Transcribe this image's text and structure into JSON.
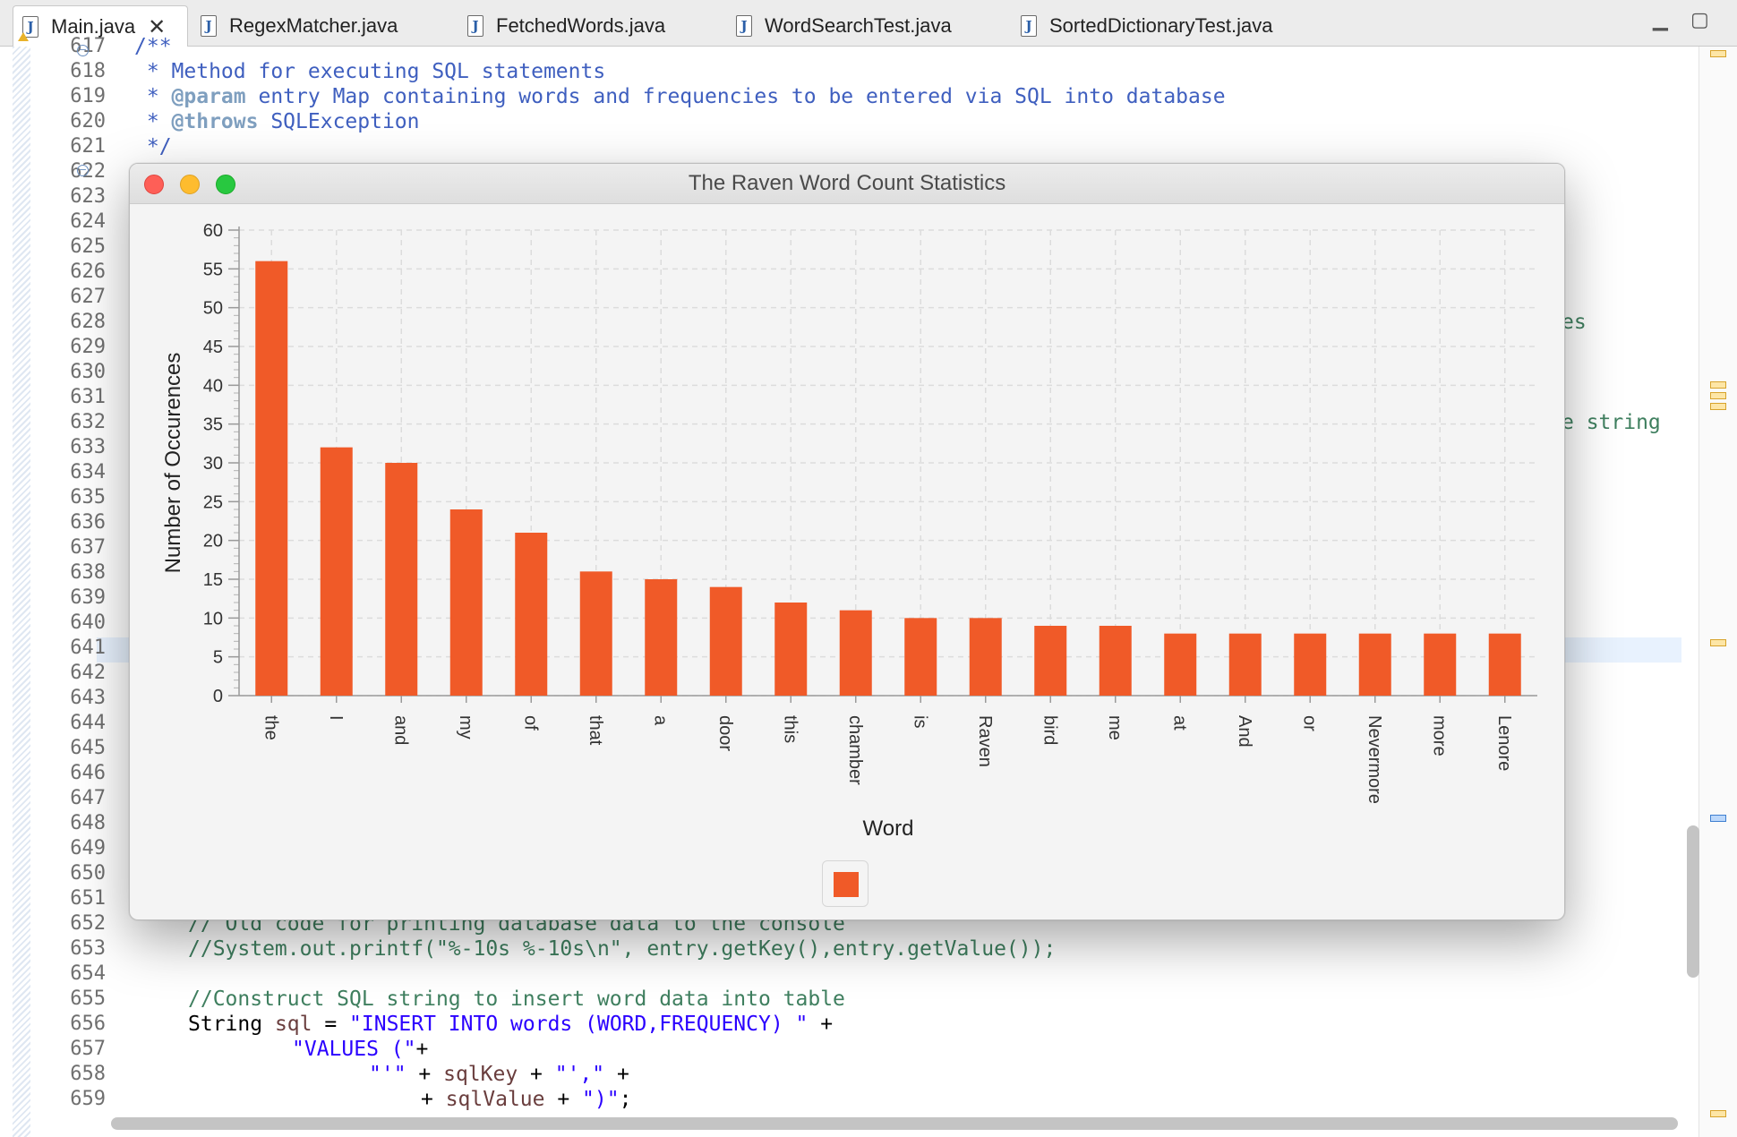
{
  "tabs": [
    {
      "label": "Main.java",
      "active": true,
      "warning": true,
      "closable": true
    },
    {
      "label": "RegexMatcher.java",
      "active": false
    },
    {
      "label": "FetchedWords.java",
      "active": false
    },
    {
      "label": "WordSearchTest.java",
      "active": false
    },
    {
      "label": "SortedDictionaryTest.java",
      "active": false
    }
  ],
  "editor": {
    "line_numbers": [
      "617",
      "618",
      "619",
      "620",
      "621",
      "622",
      "623",
      "624",
      "625",
      "626",
      "627",
      "628",
      "629",
      "630",
      "631",
      "632",
      "633",
      "634",
      "635",
      "636",
      "637",
      "638",
      "639",
      "640",
      "641",
      "642",
      "643",
      "644",
      "645",
      "646",
      "647",
      "648",
      "649",
      "650",
      "651",
      "652",
      "653",
      "654",
      "655",
      "656",
      "657",
      "658",
      "659"
    ],
    "lines": {
      "l617": "/**",
      "l618": " * Method for executing SQL statements",
      "l619_tag": "@param",
      "l619_rest": " entry Map containing words and frequencies to be entered via SQL into database",
      "l620_tag": "@throws",
      "l620_rest": " SQLException",
      "l621": " */",
      "l628_fragment": "es",
      "l632_fragment": "e string",
      "l652": "// Old code for printing database data to the console",
      "l653": "//System.out.printf(\"%-10s %-10s\\n\", entry.getKey(),entry.getValue());",
      "l655": "//Construct SQL string to insert word data into table",
      "l656_a": "String ",
      "l656_var": "sql",
      "l656_b": " = ",
      "l656_str": "\"INSERT INTO words (WORD,FREQUENCY) \"",
      "l656_c": " +",
      "l657_str": "\"VALUES (\"",
      "l657_c": "+",
      "l658_str1": "\"'\"",
      "l658_a": " + ",
      "l658_var": "sqlKey",
      "l658_b": " + ",
      "l658_str2": "\"',\"",
      "l658_c": " +",
      "l659_a": "+ ",
      "l659_var": "sqlValue",
      "l659_b": " + ",
      "l659_str": "\")\"",
      "l659_c": ";"
    }
  },
  "window": {
    "title": "The Raven Word Count Statistics"
  },
  "colors": {
    "bar": "#f05a28",
    "grid": "#dcdcdc",
    "axis": "#9a9a9a",
    "text": "#333333"
  },
  "chart_data": {
    "type": "bar",
    "title": "",
    "xlabel": "Word",
    "ylabel": "Number of Occurences",
    "ylim": [
      0,
      60
    ],
    "yticks": [
      0,
      5,
      10,
      15,
      20,
      25,
      30,
      35,
      40,
      45,
      50,
      55,
      60
    ],
    "grid": true,
    "legend_placement": "bottom",
    "categories": [
      "the",
      "I",
      "and",
      "my",
      "of",
      "that",
      "a",
      "door",
      "this",
      "chamber",
      "is",
      "Raven",
      "bird",
      "me",
      "at",
      "And",
      "or",
      "Nevermore",
      "more",
      "Lenore"
    ],
    "values": [
      56,
      32,
      30,
      24,
      21,
      16,
      15,
      14,
      12,
      11,
      10,
      10,
      9,
      9,
      8,
      8,
      8,
      8,
      8,
      8
    ]
  }
}
